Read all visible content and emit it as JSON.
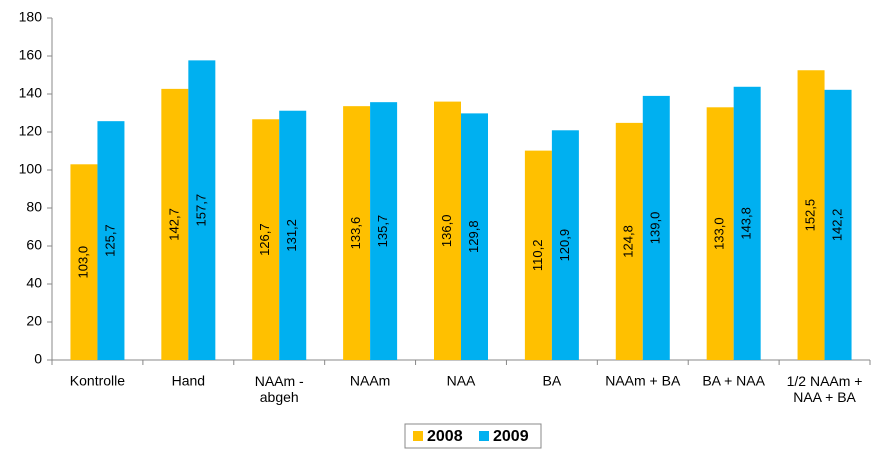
{
  "chart_data": {
    "type": "bar",
    "categories": [
      "Kontrolle",
      "Hand",
      "NAAm -\nabgeh",
      "NAAm",
      "NAA",
      "BA",
      "NAAm + BA",
      "BA + NAA",
      "1/2 NAAm +\nNAA + BA"
    ],
    "series": [
      {
        "name": "2008",
        "color": "#ffc000",
        "values": [
          103.0,
          142.7,
          126.7,
          133.6,
          136.0,
          110.2,
          124.8,
          133.0,
          152.5
        ],
        "value_labels": [
          "103,0",
          "142,7",
          "126,7",
          "133,6",
          "136,0",
          "110,2",
          "124,8",
          "133,0",
          "152,5"
        ]
      },
      {
        "name": "2009",
        "color": "#00b0f0",
        "values": [
          125.7,
          157.7,
          131.2,
          135.7,
          129.8,
          120.9,
          139.0,
          143.8,
          142.2
        ],
        "value_labels": [
          "125,7",
          "157,7",
          "131,2",
          "135,7",
          "129,8",
          "120,9",
          "139,0",
          "143,8",
          "142,2"
        ]
      }
    ],
    "ylim": [
      0,
      180
    ],
    "yticks": [
      0,
      20,
      40,
      60,
      80,
      100,
      120,
      140,
      160,
      180
    ],
    "grid": false,
    "legend": "bottom"
  }
}
